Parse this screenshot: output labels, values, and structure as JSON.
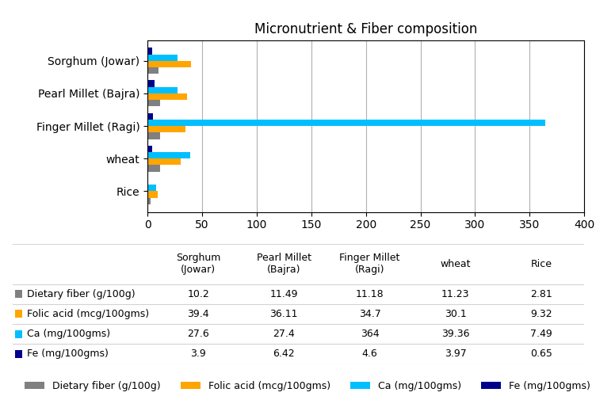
{
  "chart_data": {
    "type": "bar",
    "orientation": "horizontal",
    "title": "Micronutrient & Fiber composition",
    "categories": [
      "Rice",
      "wheat",
      "Finger Millet (Ragi)",
      "Pearl Millet (Bajra)",
      "Sorghum (Jowar)"
    ],
    "series": [
      {
        "name": "Dietary fiber (g/100g)",
        "color": "#808080",
        "values": [
          2.81,
          11.23,
          11.18,
          11.49,
          10.2
        ]
      },
      {
        "name": "Folic acid (mcg/100gms)",
        "color": "#FFA500",
        "values": [
          9.32,
          30.1,
          34.7,
          36.11,
          39.4
        ]
      },
      {
        "name": "Ca (mg/100gms)",
        "color": "#00BFFF",
        "values": [
          7.49,
          39.36,
          364,
          27.4,
          27.6
        ]
      },
      {
        "name": "Fe (mg/100gms)",
        "color": "#00008B",
        "values": [
          0.65,
          3.97,
          4.6,
          6.42,
          3.9
        ]
      }
    ],
    "xlim": [
      0,
      400
    ],
    "xticks": [
      0,
      50,
      100,
      150,
      200,
      250,
      300,
      350,
      400
    ],
    "grid": true,
    "legend": "lower center",
    "table": {
      "columns": [
        "Sorghum\n(Jowar)",
        "Pearl Millet\n(Bajra)",
        "Finger Millet\n(Ragi)",
        "wheat",
        "Rice"
      ],
      "rows": [
        {
          "name": "Dietary fiber (g/100g)",
          "color": "#808080",
          "values": [
            10.2,
            11.49,
            11.18,
            11.23,
            2.81
          ]
        },
        {
          "name": "Folic acid (mcg/100gms)",
          "color": "#FFA500",
          "values": [
            39.4,
            36.11,
            34.7,
            30.1,
            9.32
          ]
        },
        {
          "name": "Ca (mg/100gms)",
          "color": "#00BFFF",
          "values": [
            27.6,
            27.4,
            364,
            39.36,
            7.49
          ]
        },
        {
          "name": "Fe (mg/100gms)",
          "color": "#00008B",
          "values": [
            3.9,
            6.42,
            4.6,
            3.97,
            0.65
          ]
        }
      ]
    }
  }
}
